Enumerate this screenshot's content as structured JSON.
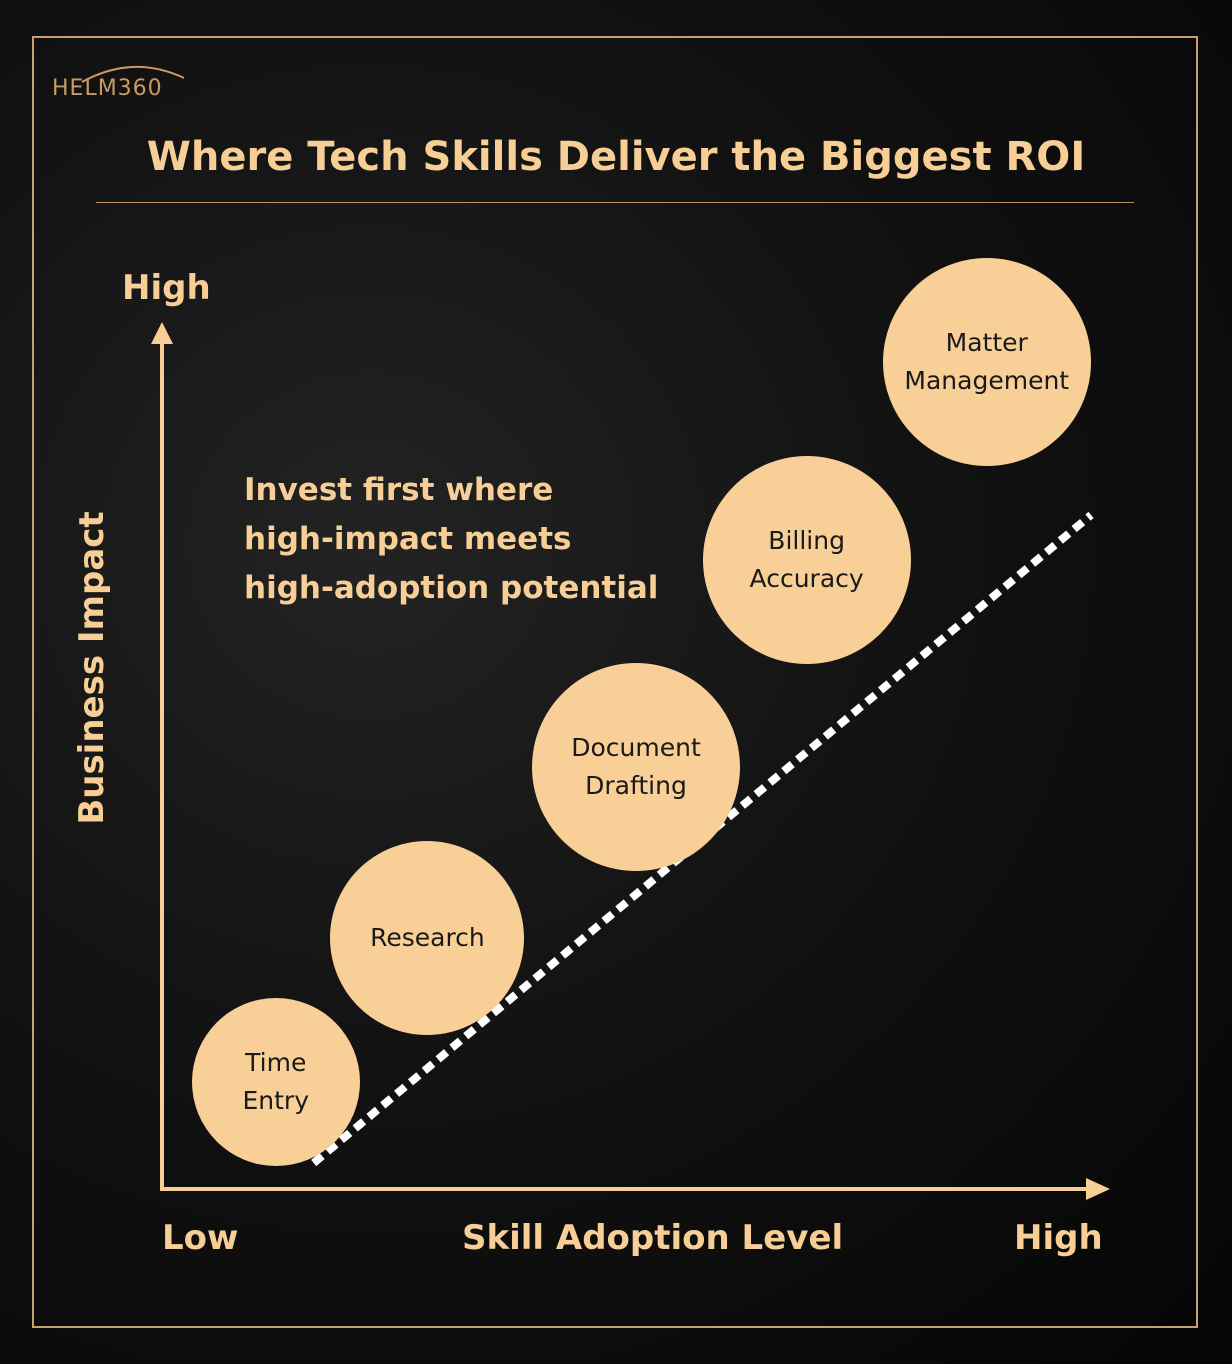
{
  "brand": {
    "logo_text": "HELM360"
  },
  "title": "Where Tech Skills Deliver the Biggest ROI",
  "callout": [
    "Invest first where",
    "high-impact meets",
    "high-adoption potential"
  ],
  "colors": {
    "accent": "#f7cf96",
    "bubble": "#f8cf97",
    "frame": "#c9a070",
    "background": "#111111",
    "dash": "#ffffff"
  },
  "chart_data": {
    "type": "scatter",
    "title": "Where Tech Skills Deliver the Biggest ROI",
    "xlabel": "Skill Adoption Level",
    "ylabel": "Business Impact",
    "x_ticks": [
      "Low",
      "High"
    ],
    "y_ticks": [
      "High"
    ],
    "xlim": [
      0,
      100
    ],
    "ylim": [
      0,
      100
    ],
    "grid": false,
    "points": [
      {
        "lines": [
          "Time",
          "Entry"
        ],
        "x": 12,
        "y": 12
      },
      {
        "lines": [
          "Research"
        ],
        "x": 28,
        "y": 28
      },
      {
        "lines": [
          "Document",
          "Drafting"
        ],
        "x": 50,
        "y": 47
      },
      {
        "lines": [
          "Billing",
          "Accuracy"
        ],
        "x": 68,
        "y": 70
      },
      {
        "lines": [
          "Matter",
          "Management"
        ],
        "x": 87,
        "y": 92
      }
    ],
    "trend_line": {
      "style": "dashed",
      "from": [
        16,
        3
      ],
      "to": [
        98,
        75
      ]
    }
  }
}
